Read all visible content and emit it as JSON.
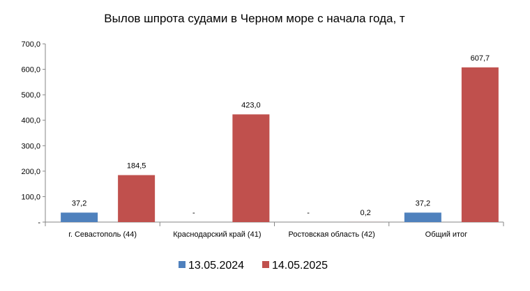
{
  "chart_data": {
    "type": "bar",
    "title": "Вылов шпрота судами в Черном море с начала  года, т",
    "categories": [
      "г. Севастополь (44)",
      "Краснодарский край (41)",
      "Ростовская область (42)",
      "Общий итог"
    ],
    "series": [
      {
        "name": "13.05.2024",
        "color": "#4f81bd",
        "values": [
          37.2,
          null,
          null,
          37.2
        ],
        "labels": [
          "37,2",
          "-",
          "-",
          "37,2"
        ]
      },
      {
        "name": "14.05.2025",
        "color": "#c0504d",
        "values": [
          184.5,
          423.0,
          0.2,
          607.7
        ],
        "labels": [
          "184,5",
          "423,0",
          "0,2",
          "607,7"
        ]
      }
    ],
    "ylim": [
      0,
      700
    ],
    "yticks": [
      0,
      100,
      200,
      300,
      400,
      500,
      600,
      700
    ],
    "ytick_labels": [
      "-",
      "100,0",
      "200,0",
      "300,0",
      "400,0",
      "500,0",
      "600,0",
      "700,0"
    ],
    "grid": false,
    "legend_position": "bottom"
  }
}
